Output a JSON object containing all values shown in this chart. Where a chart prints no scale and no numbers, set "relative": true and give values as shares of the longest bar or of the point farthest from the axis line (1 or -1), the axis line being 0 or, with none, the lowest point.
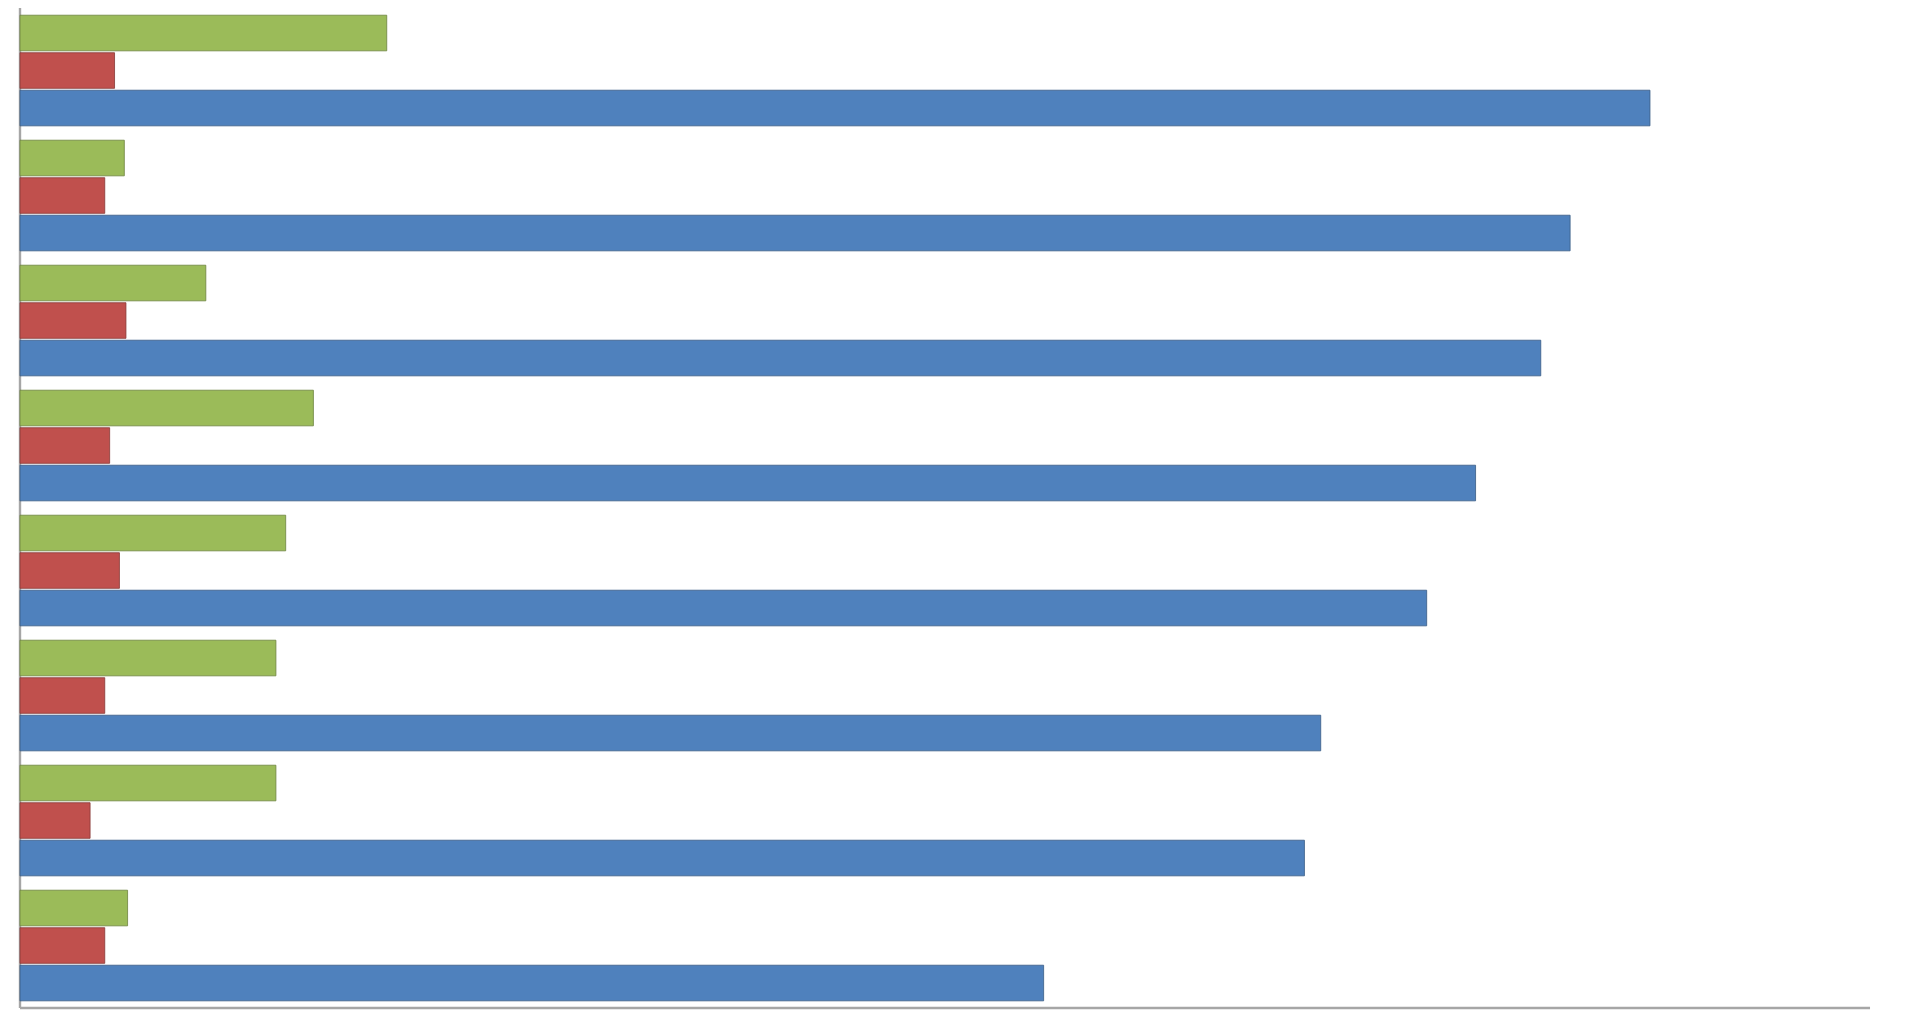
{
  "chart_data": {
    "type": "bar",
    "orientation": "horizontal",
    "relative": true,
    "categories": [
      null,
      null,
      null,
      null,
      null,
      null,
      null,
      null
    ],
    "series": [
      {
        "color": "#9bbb59",
        "values": [
          0.225,
          0.064,
          0.114,
          0.18,
          0.163,
          0.157,
          0.157,
          0.066
        ]
      },
      {
        "color": "#c0504d",
        "values": [
          0.058,
          0.052,
          0.065,
          0.055,
          0.061,
          0.052,
          0.043,
          0.052
        ]
      },
      {
        "color": "#4f81bd",
        "values": [
          1,
          0.951,
          0.933,
          0.893,
          0.863,
          0.798,
          0.788,
          0.628
        ]
      }
    ]
  }
}
